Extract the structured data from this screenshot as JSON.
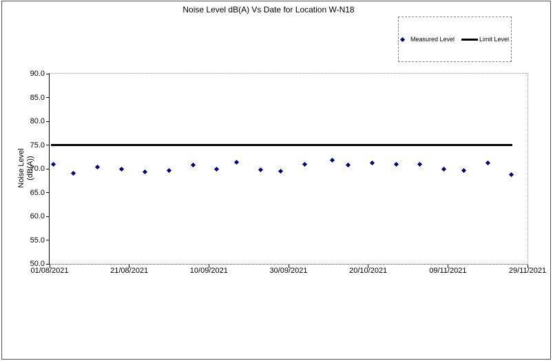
{
  "chart": {
    "title": "Noise Level dB(A) Vs Date for Location W-N18"
  },
  "y_axis": {
    "title_line1": "Noise Level",
    "title_line2": "(dB(A))"
  },
  "legend": {
    "measured_label": "Measured Level",
    "limit_label": "Limit Level"
  },
  "colors": {
    "measured_marker": "#000080",
    "limit_line": "#000000",
    "axis": "#000000"
  },
  "chart_data": {
    "type": "scatter",
    "title": "Noise Level dB(A) Vs Date for Location W-N18",
    "xlabel": "",
    "ylabel": "Noise Level (dB(A))",
    "ylim": [
      50.0,
      90.0
    ],
    "ytick_step": 5.0,
    "grid": false,
    "legend_position": "top-right",
    "x_axis": {
      "range_days": [
        0,
        120
      ],
      "tick_days": [
        0,
        20,
        40,
        60,
        80,
        100,
        120
      ],
      "tick_labels": [
        "01/08/2021",
        "21/08/2021",
        "10/09/2021",
        "30/09/2021",
        "20/10/2021",
        "09/11/2021",
        "29/11/2021"
      ]
    },
    "series": [
      {
        "name": "Measured Level",
        "style": "scatter",
        "marker": "diamond",
        "color": "#000080",
        "points": [
          {
            "day": 1,
            "date_est": "02/08/2021",
            "value": 70.9
          },
          {
            "day": 6,
            "date_est": "07/08/2021",
            "value": 69.0
          },
          {
            "day": 12,
            "date_est": "13/08/2021",
            "value": 70.4
          },
          {
            "day": 18,
            "date_est": "19/08/2021",
            "value": 69.9
          },
          {
            "day": 24,
            "date_est": "25/08/2021",
            "value": 69.4
          },
          {
            "day": 30,
            "date_est": "31/08/2021",
            "value": 69.6
          },
          {
            "day": 36,
            "date_est": "06/09/2021",
            "value": 70.8
          },
          {
            "day": 42,
            "date_est": "12/09/2021",
            "value": 70.0
          },
          {
            "day": 47,
            "date_est": "17/09/2021",
            "value": 71.4
          },
          {
            "day": 53,
            "date_est": "23/09/2021",
            "value": 69.8
          },
          {
            "day": 58,
            "date_est": "28/09/2021",
            "value": 69.5
          },
          {
            "day": 64,
            "date_est": "04/10/2021",
            "value": 71.0
          },
          {
            "day": 71,
            "date_est": "11/10/2021",
            "value": 71.8
          },
          {
            "day": 75,
            "date_est": "15/10/2021",
            "value": 70.8
          },
          {
            "day": 81,
            "date_est": "21/10/2021",
            "value": 71.2
          },
          {
            "day": 87,
            "date_est": "27/10/2021",
            "value": 71.0
          },
          {
            "day": 93,
            "date_est": "02/11/2021",
            "value": 71.0
          },
          {
            "day": 99,
            "date_est": "08/11/2021",
            "value": 70.0
          },
          {
            "day": 104,
            "date_est": "13/11/2021",
            "value": 69.6
          },
          {
            "day": 110,
            "date_est": "19/11/2021",
            "value": 71.2
          },
          {
            "day": 116,
            "date_est": "25/11/2021",
            "value": 68.7
          }
        ]
      },
      {
        "name": "Limit Level",
        "style": "line",
        "color": "#000000",
        "value": 75.0,
        "day_start": 0,
        "day_end": 116
      }
    ]
  }
}
